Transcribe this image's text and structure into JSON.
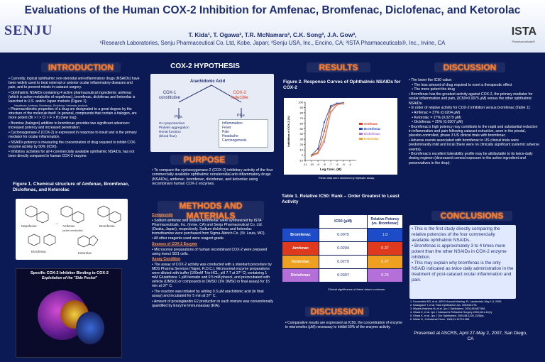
{
  "header": {
    "title": "Evaluations of the Human COX-2 Inhibition for Amfenac, Bromfenac, Diclofenac, and Ketorolac",
    "authors": "T. Kida¹, T. Ogawa², T.R. McNamara³, C.K. Song³, J.A. Gow³,",
    "affiliations": "¹Research Laboratories, Senju Pharmaceutical Co. Ltd, Kobe, Japan; ²Senju USA, Inc., Encino, CA; ³ISTA Pharmaceuticals®, Inc., Irvine, CA",
    "logo_left": "SENJU",
    "logo_right": "ISTA",
    "logo_right_sub": "Pharmaceuticals®"
  },
  "introduction": {
    "heading": "INTRODUCTION",
    "paragraphs": [
      "• Currently, topical ophthalmic non-steroidal anti-inflammatory drugs (NSAIDs) have been widely used to treat external or anterior ocular inflammatory diseases and pain, and to prevent miosis in cataract surgery.",
      "• Ophthalmic NSAIDs containing 4 active pharmaceutical ingredients: amfenac (which is active metabolite of nepafenac), bromfenac, diclofenac and ketorolac is launched in U.S. and/or Japan markets (Figure 1).",
      "• Pharmacokinetic properties of a drug are designated to a great degree by the structure of the molecule itself. In general, compounds that contain a halogen, are more potent (Br > I > Cl > F > H) (new ring).",
      "• Bromine (halogen) addition to bromfenac provides two significant advances: increased potency and increased penetration.",
      "• Cyclooxygenase-2 (COX-2) is expressed in response to insult and is the primary mediator for ocular inflammation.",
      "• NSAIDs potency is measuring the concentration of drug required to inhibit COX-enzyme activity by 50% (IC50).",
      "• Inhibitory activities for all 4 commercially available ophthalmic NSAIDs, has not been directly compared in human COX-2 enzyme."
    ],
    "small_note": "Nepafenac, Amfenac, Bromfenac, Diclofenac, Ketorolac products"
  },
  "figure1": {
    "title": "Figure 1.  Chemical structure of Amfenac, Bromfenac, Diclofenac, and Ketorolac",
    "labels": [
      "Nepafenac",
      "Amfenac",
      "(active metabolite)",
      "Bromfenac",
      "Diclofenac",
      "Ketorolac"
    ]
  },
  "pocket": {
    "title": "Specific COX-2 Inhibitor Binding to COX-2",
    "subtitle": "Exploitation of the \"Side Pocket\""
  },
  "hypothesis": {
    "heading": "COX-2 HYPOTHESIS",
    "arachidonic": "Arachidonic Acid",
    "cox1": "COX-1",
    "cox1_sub": "constitutive",
    "cox2": "COX-2",
    "cox2_sub": "inducible",
    "pgs_left": "PGs",
    "pgs_right": "PGs",
    "left_list": [
      "GI cytoprotection",
      "Platelet aggregation",
      "Renal function",
      "(blood flow)"
    ],
    "right_list": [
      "Inflammation",
      "Fever",
      "Pain",
      "Headache",
      "Carcinogenesis"
    ]
  },
  "purpose": {
    "heading": "PURPOSE",
    "text": "• To compare the cyclooxygenase-2 (COX-2) inhibitory activity of the four commercially available ophthalmic nonsteroidal anti-inflammatory drugs (NSAIDs), amfenac, bromfenac, diclofenac, and ketorolac using recombinant human COX-2 enzymes."
  },
  "methods": {
    "heading": "METHODS AND MATERIALS",
    "compounds_label": "Compounds",
    "compounds": [
      "• Sodium amfenac and sodium bromfenac were synthesized by ISTA Pharmaceuticals, Inc. (Irvine, CA) and Senju Pharmaceutical Co. Ltd. (Osaka, Japan), respectively. Sodium diclofenac and ketorolac tromethamine were purchased from Sigma-Aldrich Co. (St. Louis, MO).",
      "• All other reagents used were reagent grade."
    ],
    "sources_label": "Sources of COX-2 Enzyme",
    "sources": "• Microsomal preparations of human recombinant COX-2 were prepared using insect Sf21 cells.",
    "assay_label": "Assay Condition",
    "assay": [
      "• The assay of COX-2 activity was conducted with a standard procedure by MDS Pharma Services (Taipei, R.O.C.). Microsomal enzyme preparations were diluted with buffer (100mM Tris-HCL, pH 7.7 at 37° C) containing 1 mM Glutathione 1 μM hematin and 0.5 mM phenol, and preincubated with vehicle (DMSO) or compounds in DMSO (1% DMSO in final assay) for 15 min at 37° C.",
      "• The reaction was initiated by adding 0.3 μM arachidonic acid (in final assay) and incubated for 5 min at 37° C.",
      "• Amount of prostaglandin E2 production in each mixture was conventionally quantified by Enzyme Immunoassay (EIA)."
    ]
  },
  "results": {
    "heading": "RESULTS",
    "figure2_title": "Figure 2.   Response Curves of Ophthalmic NSAIDs for COX-2",
    "figure2_note": "These data were obtained by triplicate assay.",
    "table_title": "Table 1. Relative IC50: Rank – Order Greatest to Least Activity",
    "table_headers": [
      "",
      "IC50 (μM)",
      "Relative Potency (vs. Bromfenac)"
    ],
    "table_rows": [
      {
        "drug": "Bromfenac",
        "ic50": "0.0075",
        "potency": "1.0",
        "color": "#1e4bc8"
      },
      {
        "drug": "Amfenac",
        "ic50": "0.0204",
        "potency": "0.37",
        "color": "#e03a1e"
      },
      {
        "drug": "Ketorolac",
        "ic50": "0.0279",
        "potency": "0.27",
        "color": "#f0a020"
      },
      {
        "drug": "Diclofenac",
        "ic50": "0.0307",
        "potency": "0.25",
        "color": "#b46fd8"
      }
    ],
    "table_note": "Clinical significance of these data is unknown."
  },
  "chart_data": {
    "type": "line",
    "title": "",
    "xlabel": "Log Conc. (M)",
    "ylabel": "Inhibition of COX-2 (%)",
    "xlim": [
      -11,
      -3
    ],
    "ylim": [
      -10,
      100
    ],
    "x_ticks": [
      "-11",
      "-10",
      "-9",
      "-8",
      "-7",
      "-6",
      "-5",
      "-4"
    ],
    "y_ticks": [
      "100",
      "90",
      "80",
      "70",
      "60",
      "50",
      "40",
      "30",
      "20",
      "10",
      "0",
      "-10"
    ],
    "series": [
      {
        "name": "Amfenac",
        "color": "#e03a1e",
        "x": [
          -10,
          -9,
          -8,
          -7,
          -6,
          -5
        ],
        "values": [
          0,
          5,
          45,
          90,
          97,
          98
        ]
      },
      {
        "name": "Bromfenac",
        "color": "#1e4bc8",
        "x": [
          -10,
          -9,
          -8,
          -7,
          -6,
          -5
        ],
        "values": [
          0,
          12,
          62,
          93,
          98,
          99
        ]
      },
      {
        "name": "Diclofenac",
        "color": "#b46fd8",
        "x": [
          -10,
          -9,
          -8,
          -7,
          -6,
          -5
        ],
        "values": [
          -2,
          3,
          25,
          80,
          95,
          97
        ]
      },
      {
        "name": "Ketorolac",
        "color": "#f0a020",
        "x": [
          -10,
          -9,
          -8,
          -7,
          -6,
          -5
        ],
        "values": [
          -1,
          4,
          30,
          82,
          96,
          98
        ]
      }
    ]
  },
  "discussion": {
    "heading": "DISCUSSION",
    "paragraphs": [
      "• The lower the IC50 value:",
      "   • The less amount of drug required to exert a therapeutic effect",
      "   • The more potent the drug",
      "• Bromfenac has the greatest activity against COX-2, the primary mediator for ocular inflammation and pain, (IC50=0.0075 μM) versus the other ophthalmic NSAIDs.",
      "• In order of relative activity for COX-2 inhibition versus bromfenac (Table 1):",
      "   • Amfenac = 37% (0.0204 μM)",
      "   • Ketorolac = 27% (0.0279 μM)",
      "   • Diclofenac = 25% (0.0307 μM)",
      "• Bromfenac's high potency may contribute to the rapid and substantial reduction in inflammation and pain following cataract extraction, seen in the pivotal, placebo-controlled, phase 3 US clinical trials with bromfenac.",
      "• Adverse events associated with bromfenac in US clinical trials were predominantly mild and local (there were no clinically significant systemic adverse events).",
      "• Bromfenac's excellent tolerability profile may be attributable to its twice-daily dosing regimen (decreased corneal exposure to the active ingredient and preservatives in the drop)."
    ],
    "heading2": "DISCUSSION",
    "text2": "• Comparative results are expressed as IC50, the concentration of enzyme in micromoles (μM) necessary to inhibit 50% of the enzyme activity."
  },
  "conclusions": {
    "heading": "CONCLUSIONS",
    "items": [
      "• This is the first study directly comparing the relative potencies of the four commercially available ophthalmic NSAIDs.",
      "• Bromfenac is approximately 3 to 4 times more potent than the other NSAIDs in COX-2 enzyme inhibition.",
      "• This may explain why bromfenac is the only NSAID indicated as twice daily administration in the treatment of post-cataract ocular inflammation and pain."
    ],
    "references": [
      "1. Donnenfeld ED, et al. ARVO Annual Meeting, Ft. Lauderdale, May 1-5, 2005.",
      "2. Kawaguchi T, et al. Folia Ophthalmol Jpn. 2003;54:276.",
      "3. Miyake-Kashima M, et al. Jpn J Ophthalmol. 2004;48:587-590.",
      "4. Ohara K, et al. Jpn J Cataract & Refractive Surgery 2004;18:1-12(e).",
      "5. Ohara K, et al. Jpn J Clin Ophthalmol. 2004;58:1325-1328(e).",
      "6. Walsh D, J Medicinal Chem. 1984;11:1379-1388."
    ],
    "presented": "Presented at ASCRS, April 27-May 2, 2007, San Diego, CA"
  }
}
